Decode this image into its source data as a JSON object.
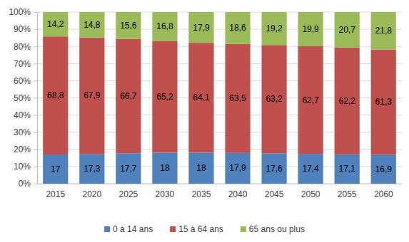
{
  "chart_data": {
    "type": "bar",
    "stacked": true,
    "data_labels": true,
    "grid": true,
    "legend": "bottom",
    "categories": [
      "2015",
      "2020",
      "2025",
      "2030",
      "2035",
      "2040",
      "2045",
      "2050",
      "2055",
      "2060"
    ],
    "series": [
      {
        "name": "0 à 14 ans",
        "color": "#4f81bd",
        "values": [
          17,
          17.3,
          17.7,
          18,
          18,
          17.9,
          17.6,
          17.4,
          17.1,
          16.9
        ],
        "value_labels": [
          "17",
          "17,3",
          "17,7",
          "18",
          "18",
          "17,9",
          "17,6",
          "17,4",
          "17,1",
          "16,9"
        ]
      },
      {
        "name": "15 à 64 ans",
        "color": "#c0504d",
        "values": [
          68.8,
          67.9,
          66.7,
          65.2,
          64.1,
          63.5,
          63.2,
          62.7,
          62.2,
          61.3
        ],
        "value_labels": [
          "68,8",
          "67,9",
          "66,7",
          "65,2",
          "64,1",
          "63,5",
          "63,2",
          "62,7",
          "62,2",
          "61,3"
        ]
      },
      {
        "name": "65 ans ou plus",
        "color": "#9bbb59",
        "values": [
          14.2,
          14.8,
          15.6,
          16.8,
          17.9,
          18.6,
          19.2,
          19.9,
          20.7,
          21.8
        ],
        "value_labels": [
          "14,2",
          "14,8",
          "15,6",
          "16,8",
          "17,9",
          "18,6",
          "19,2",
          "19,9",
          "20,7",
          "21,8"
        ]
      }
    ],
    "ylim": [
      0,
      100
    ],
    "yticks": [
      {
        "value": 0,
        "label": "0%"
      },
      {
        "value": 10,
        "label": "10%"
      },
      {
        "value": 20,
        "label": "20%"
      },
      {
        "value": 30,
        "label": "30%"
      },
      {
        "value": 40,
        "label": "40%"
      },
      {
        "value": 50,
        "label": "50%"
      },
      {
        "value": 60,
        "label": "60%"
      },
      {
        "value": 70,
        "label": "70%"
      },
      {
        "value": 80,
        "label": "80%"
      },
      {
        "value": 90,
        "label": "90%"
      },
      {
        "value": 100,
        "label": "100%"
      }
    ]
  }
}
